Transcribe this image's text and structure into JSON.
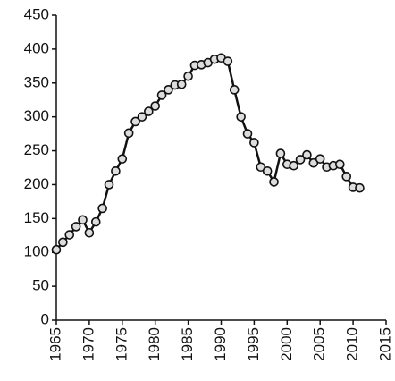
{
  "chart_data": {
    "type": "line",
    "x": [
      1965,
      1966,
      1967,
      1968,
      1969,
      1970,
      1971,
      1972,
      1973,
      1974,
      1975,
      1976,
      1977,
      1978,
      1979,
      1980,
      1981,
      1982,
      1983,
      1984,
      1985,
      1986,
      1987,
      1988,
      1989,
      1990,
      1991,
      1992,
      1993,
      1994,
      1995,
      1996,
      1997,
      1998,
      1999,
      2000,
      2001,
      2002,
      2003,
      2004,
      2005,
      2006,
      2007,
      2008,
      2009,
      2010,
      2011
    ],
    "values": [
      104,
      115,
      126,
      138,
      148,
      129,
      145,
      165,
      200,
      220,
      238,
      276,
      293,
      300,
      308,
      316,
      332,
      340,
      347,
      348,
      360,
      376,
      377,
      380,
      385,
      387,
      382,
      340,
      300,
      275,
      262,
      226,
      220,
      204,
      246,
      230,
      228,
      237,
      244,
      232,
      238,
      226,
      228,
      230,
      212,
      196,
      195
    ],
    "color": "#111111",
    "xlim": [
      1965,
      2015
    ],
    "xticks": [
      1965,
      1970,
      1975,
      1980,
      1985,
      1990,
      1995,
      2000,
      2005,
      2010,
      2015
    ],
    "ylim": [
      0,
      450
    ],
    "yticks": [
      0,
      50,
      100,
      150,
      200,
      250,
      300,
      350,
      400,
      450
    ],
    "grid": false
  }
}
